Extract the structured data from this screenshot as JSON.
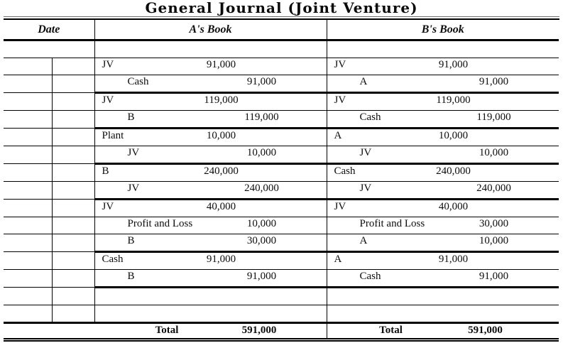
{
  "title": "General Journal (Joint Venture)",
  "header": {
    "date": "Date",
    "a_book": "A's Book",
    "b_book": "B's Book"
  },
  "rows": [
    {
      "type": "spacer"
    },
    {
      "type": "entry",
      "thick": false,
      "a": {
        "name": "JV",
        "indent": false,
        "side": "debit",
        "amount": "91,000"
      },
      "b": {
        "name": "JV",
        "indent": false,
        "side": "debit",
        "amount": "91,000"
      }
    },
    {
      "type": "entry",
      "thick": true,
      "a": {
        "name": "Cash",
        "indent": true,
        "side": "credit",
        "amount": "91,000"
      },
      "b": {
        "name": "A",
        "indent": true,
        "side": "credit",
        "amount": "91,000"
      }
    },
    {
      "type": "entry",
      "thick": false,
      "a": {
        "name": "JV",
        "indent": false,
        "side": "debit",
        "amount": "119,000"
      },
      "b": {
        "name": "JV",
        "indent": false,
        "side": "debit",
        "amount": "119,000"
      }
    },
    {
      "type": "entry",
      "thick": true,
      "a": {
        "name": "B",
        "indent": true,
        "side": "credit",
        "amount": "119,000"
      },
      "b": {
        "name": "Cash",
        "indent": true,
        "side": "credit",
        "amount": "119,000"
      }
    },
    {
      "type": "entry",
      "thick": false,
      "a": {
        "name": "Plant",
        "indent": false,
        "side": "debit",
        "amount": "10,000"
      },
      "b": {
        "name": "A",
        "indent": false,
        "side": "debit",
        "amount": "10,000"
      }
    },
    {
      "type": "entry",
      "thick": true,
      "a": {
        "name": "JV",
        "indent": true,
        "side": "credit",
        "amount": "10,000"
      },
      "b": {
        "name": "JV",
        "indent": true,
        "side": "credit",
        "amount": "10,000"
      }
    },
    {
      "type": "entry",
      "thick": false,
      "a": {
        "name": "B",
        "indent": false,
        "side": "debit",
        "amount": "240,000"
      },
      "b": {
        "name": "Cash",
        "indent": false,
        "side": "debit",
        "amount": "240,000"
      }
    },
    {
      "type": "entry",
      "thick": true,
      "a": {
        "name": "JV",
        "indent": true,
        "side": "credit",
        "amount": "240,000"
      },
      "b": {
        "name": "JV",
        "indent": true,
        "side": "credit",
        "amount": "240,000"
      }
    },
    {
      "type": "entry",
      "thick": false,
      "a": {
        "name": "JV",
        "indent": false,
        "side": "debit",
        "amount": "40,000"
      },
      "b": {
        "name": "JV",
        "indent": false,
        "side": "debit",
        "amount": "40,000"
      }
    },
    {
      "type": "entry",
      "thick": false,
      "a": {
        "name": "Profit and Loss",
        "indent": true,
        "side": "credit",
        "amount": "10,000"
      },
      "b": {
        "name": "Profit and Loss",
        "indent": true,
        "side": "credit",
        "amount": "30,000"
      }
    },
    {
      "type": "entry",
      "thick": true,
      "a": {
        "name": "B",
        "indent": true,
        "side": "credit",
        "amount": "30,000"
      },
      "b": {
        "name": "A",
        "indent": true,
        "side": "credit",
        "amount": "10,000"
      }
    },
    {
      "type": "entry",
      "thick": false,
      "a": {
        "name": "Cash",
        "indent": false,
        "side": "debit",
        "amount": "91,000"
      },
      "b": {
        "name": "A",
        "indent": false,
        "side": "debit",
        "amount": "91,000"
      }
    },
    {
      "type": "entry",
      "thick": true,
      "a": {
        "name": "B",
        "indent": true,
        "side": "credit",
        "amount": "91,000"
      },
      "b": {
        "name": "Cash",
        "indent": true,
        "side": "credit",
        "amount": "91,000"
      }
    },
    {
      "type": "empty"
    },
    {
      "type": "empty",
      "pre_total": true
    }
  ],
  "total": {
    "label": "Total",
    "a_amount": "591,000",
    "b_amount": "591,000"
  },
  "colors": {
    "line": "#000000",
    "text": "#0d0d0d",
    "background": "#ffffff"
  }
}
